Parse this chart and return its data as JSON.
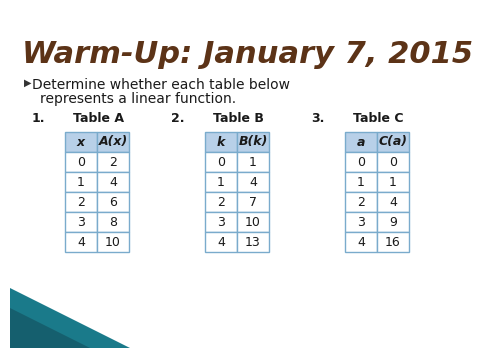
{
  "title": "Warm-Up: January 7, 2015",
  "title_color": "#5C3317",
  "bullet_text": "Determine whether each table below\nrepresents a linear function.",
  "tables": [
    {
      "number": "1.",
      "label": "Table A",
      "headers": [
        "x",
        "A(x)"
      ],
      "rows": [
        [
          0,
          2
        ],
        [
          1,
          4
        ],
        [
          2,
          6
        ],
        [
          3,
          8
        ],
        [
          4,
          10
        ]
      ]
    },
    {
      "number": "2.",
      "label": "Table B",
      "headers": [
        "k",
        "B(k)"
      ],
      "rows": [
        [
          0,
          1
        ],
        [
          1,
          4
        ],
        [
          2,
          7
        ],
        [
          3,
          10
        ],
        [
          4,
          13
        ]
      ]
    },
    {
      "number": "3.",
      "label": "Table C",
      "headers": [
        "a",
        "C(a)"
      ],
      "rows": [
        [
          0,
          0
        ],
        [
          1,
          1
        ],
        [
          2,
          4
        ],
        [
          3,
          9
        ],
        [
          4,
          16
        ]
      ]
    }
  ],
  "header_bg": "#B8D0E8",
  "cell_bg": "#FFFFFF",
  "border_color": "#7AABCC",
  "background_top": "#FFFFFF",
  "background_bottom_color": "#2E8B9A",
  "fig_width": 4.5,
  "fig_height": 3.38
}
